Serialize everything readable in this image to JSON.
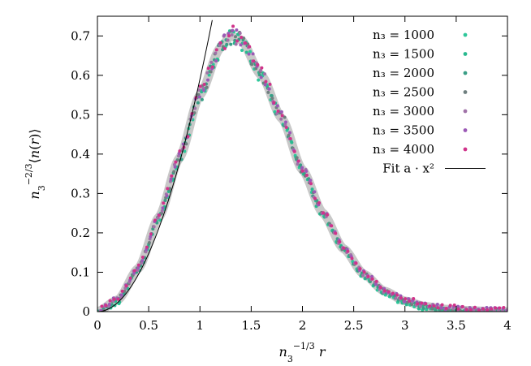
{
  "chart_data": {
    "type": "scatter",
    "xlabel": "n₃^{-1/3} r",
    "ylabel": "n₃^{-2/3} ⟨n(r)⟩",
    "xlim": [
      0,
      4
    ],
    "ylim": [
      0,
      0.75
    ],
    "x_ticks": [
      "0",
      "0.5",
      "1",
      "1.5",
      "2",
      "2.5",
      "3",
      "3.5",
      "4"
    ],
    "y_ticks": [
      "0",
      "0.1",
      "0.2",
      "0.3",
      "0.4",
      "0.5",
      "0.6",
      "0.7"
    ],
    "grid": false,
    "legend_position": "top-right",
    "series": [
      {
        "name": "n₃ = 1000",
        "color": "#2ec79a"
      },
      {
        "name": "n₃ = 1500",
        "color": "#28b98f"
      },
      {
        "name": "n₃ = 2000",
        "color": "#3a9e86"
      },
      {
        "name": "n₃ = 2500",
        "color": "#6f7f7f"
      },
      {
        "name": "n₃ = 3000",
        "color": "#a072a8"
      },
      {
        "name": "n₃ = 3500",
        "color": "#9b59b6"
      },
      {
        "name": "n₃ = 4000",
        "color": "#d0338a"
      }
    ],
    "curve_samples": {
      "x": [
        0,
        0.2,
        0.4,
        0.6,
        0.8,
        1.0,
        1.2,
        1.3,
        1.4,
        1.6,
        1.8,
        2.0,
        2.2,
        2.4,
        2.6,
        2.8,
        3.0,
        3.2,
        3.4,
        3.6,
        3.8,
        4.0
      ],
      "y": [
        0,
        0.03,
        0.11,
        0.24,
        0.39,
        0.55,
        0.67,
        0.7,
        0.69,
        0.6,
        0.49,
        0.36,
        0.25,
        0.16,
        0.095,
        0.052,
        0.027,
        0.013,
        0.006,
        0.003,
        0.001,
        0.0005
      ]
    },
    "fit": {
      "label": "Fit a · x²",
      "a": 0.59,
      "color": "#000000"
    },
    "band_color": "#c8c8c8"
  }
}
